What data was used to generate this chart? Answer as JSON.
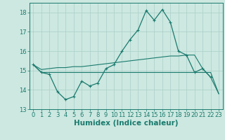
{
  "xlabel": "Humidex (Indice chaleur)",
  "background_color": "#cce8e0",
  "grid_color": "#aacfc8",
  "line_color": "#1a7a6e",
  "xlim": [
    -0.5,
    23.5
  ],
  "ylim": [
    13.0,
    18.5
  ],
  "yticks": [
    13,
    14,
    15,
    16,
    17,
    18
  ],
  "xticks": [
    0,
    1,
    2,
    3,
    4,
    5,
    6,
    7,
    8,
    9,
    10,
    11,
    12,
    13,
    14,
    15,
    16,
    17,
    18,
    19,
    20,
    21,
    22,
    23
  ],
  "hours": [
    0,
    1,
    2,
    3,
    4,
    5,
    6,
    7,
    8,
    9,
    10,
    11,
    12,
    13,
    14,
    15,
    16,
    17,
    18,
    19,
    20,
    21,
    22,
    23
  ],
  "main_line": [
    15.3,
    14.9,
    14.8,
    13.9,
    13.5,
    13.65,
    14.45,
    14.2,
    14.35,
    15.1,
    15.3,
    16.0,
    16.6,
    17.1,
    18.1,
    17.6,
    18.15,
    17.5,
    16.0,
    15.8,
    14.9,
    15.1,
    14.65,
    null
  ],
  "min_line": [
    15.3,
    14.9,
    14.9,
    14.9,
    14.9,
    14.9,
    14.9,
    14.9,
    14.9,
    14.9,
    14.9,
    14.9,
    14.9,
    14.9,
    14.9,
    14.9,
    14.9,
    14.9,
    14.9,
    14.9,
    14.9,
    14.9,
    14.9,
    13.8
  ],
  "max_line": [
    15.3,
    15.05,
    15.1,
    15.15,
    15.15,
    15.2,
    15.2,
    15.25,
    15.3,
    15.35,
    15.4,
    15.45,
    15.5,
    15.55,
    15.6,
    15.65,
    15.7,
    15.75,
    15.75,
    15.8,
    15.8,
    15.1,
    14.65,
    13.8
  ],
  "font_color": "#1a7a6e",
  "fontsize_tick": 6,
  "fontsize_label": 7.5
}
